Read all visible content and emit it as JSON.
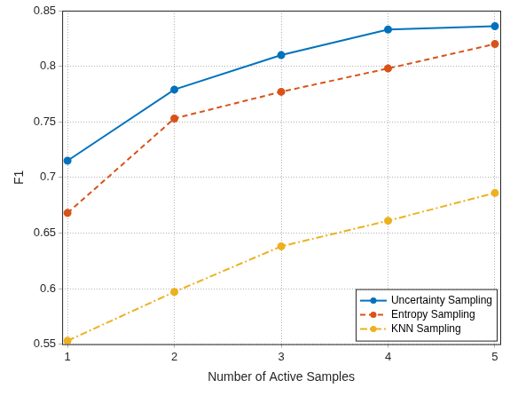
{
  "chart_data": {
    "type": "line",
    "x_label": "Number of Active Samples",
    "y_label": "F1",
    "x": [
      1,
      2,
      3,
      4,
      5
    ],
    "series": [
      {
        "name": "Uncertainty Sampling",
        "color": "#0072BD",
        "line_style": "solid",
        "marker": "circle",
        "values": [
          0.715,
          0.779,
          0.81,
          0.833,
          0.836
        ]
      },
      {
        "name": "Entropy Sampling",
        "color": "#D95319",
        "line_style": "dashed",
        "marker": "circle",
        "values": [
          0.668,
          0.753,
          0.777,
          0.798,
          0.82
        ]
      },
      {
        "name": "KNN Sampling",
        "color": "#EDB120",
        "line_style": "dashdot",
        "marker": "circle",
        "values": [
          0.553,
          0.597,
          0.638,
          0.661,
          0.686
        ]
      }
    ],
    "xlim": [
      0.95,
      5.05
    ],
    "xticks": [
      1,
      2,
      3,
      4,
      5
    ],
    "ylim": [
      0.55,
      0.85
    ],
    "yticks": [
      0.55,
      0.6,
      0.65,
      0.7,
      0.75,
      0.8,
      0.85
    ],
    "grid": true,
    "legend": "lower right"
  }
}
